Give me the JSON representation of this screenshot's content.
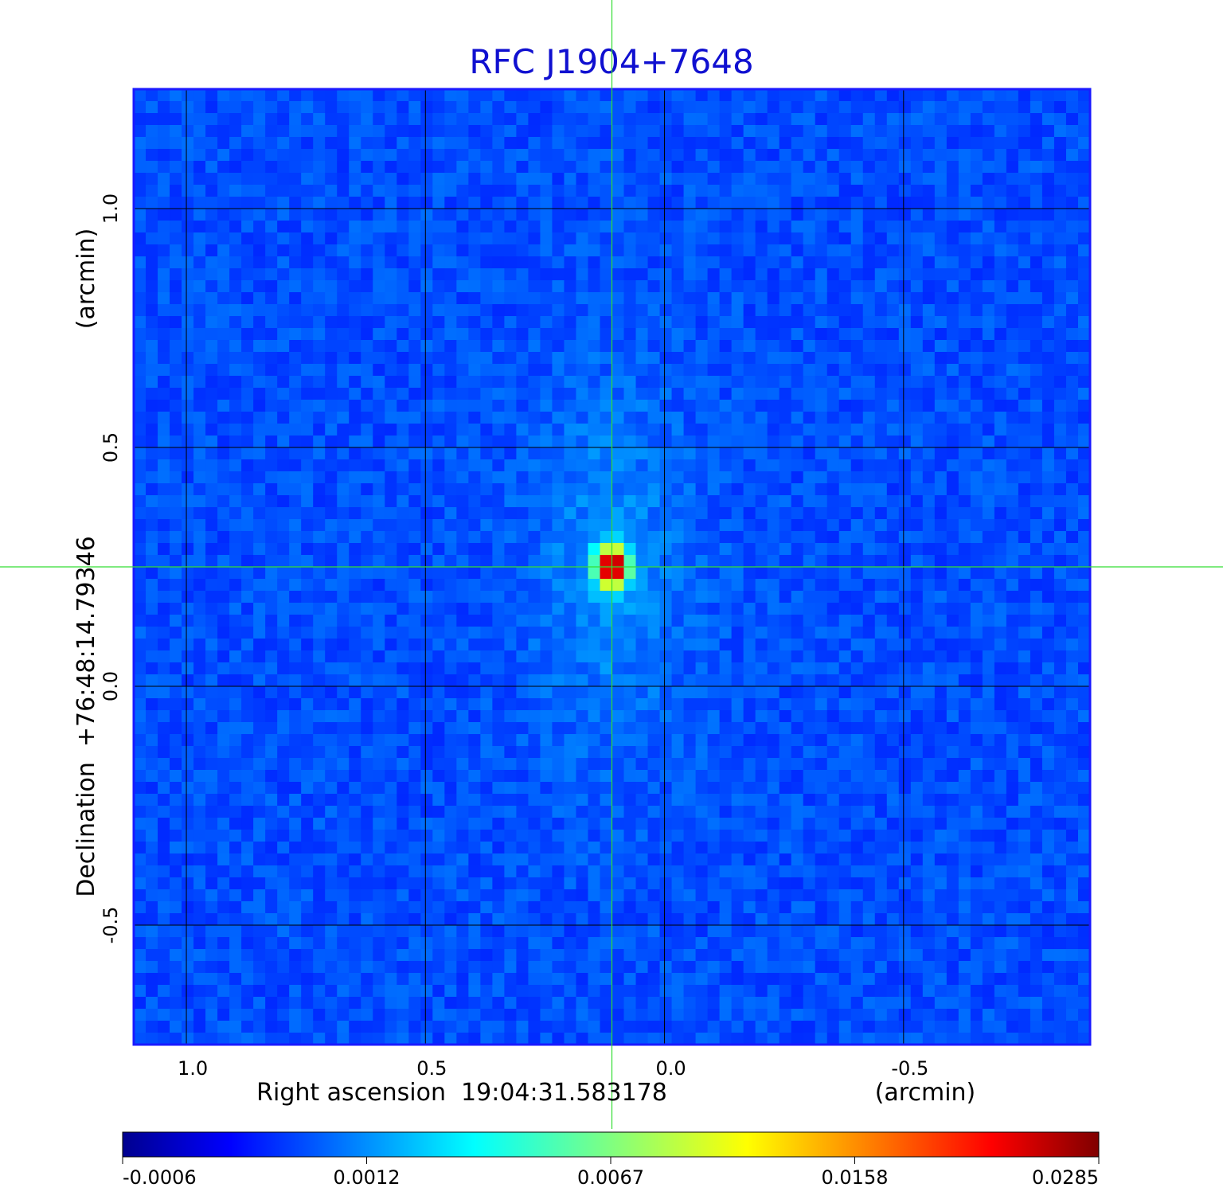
{
  "chart_data": {
    "type": "heatmap",
    "title": "RFC J1904+7648",
    "xlabel": "Right ascension  19:04:31.583178",
    "xunit": "(arcmin)",
    "ylabel": "Declination  +76:48:14.79346",
    "yunit": "(arcmin)",
    "xlim": [
      1.11,
      -0.89
    ],
    "ylim": [
      -0.75,
      1.25
    ],
    "x_ticks": [
      1.0,
      0.5,
      0.0,
      -0.5
    ],
    "x_tick_labels": [
      "1.0",
      "0.5",
      "0.0",
      "-0.5"
    ],
    "y_ticks": [
      1.0,
      0.5,
      0.0,
      -0.5
    ],
    "y_tick_labels": [
      "1.0",
      "0.5",
      "0.0",
      "-0.5"
    ],
    "grid": true,
    "crosshair": {
      "x": 0.11,
      "y": 0.25
    },
    "source_peak": {
      "x": 0.11,
      "y": 0.25,
      "value": 0.0285
    },
    "colorbar": {
      "ticks": [
        -0.0006,
        0.0012,
        0.0067,
        0.0158,
        0.0285
      ],
      "tick_labels": [
        "-0.0006",
        "0.0012",
        "0.0067",
        "0.0158",
        "0.0285"
      ],
      "colormap": "jet",
      "placement": "bottom"
    },
    "colors": {
      "title": "#1010d0",
      "grid": "#000000",
      "crosshair": "#33dd33",
      "frame": "#1a1aff"
    }
  }
}
